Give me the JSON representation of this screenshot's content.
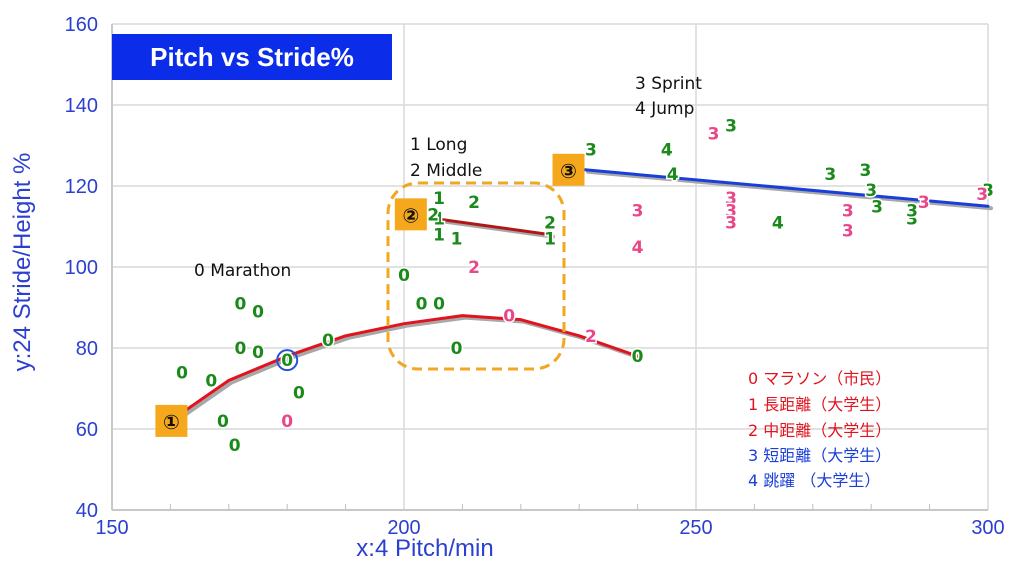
{
  "chart_data": {
    "type": "scatter",
    "title": "Pitch vs Stride%",
    "xlabel": "x:4 Pitch/min",
    "ylabel": "y:24 Stride/Height %",
    "xlim": [
      150,
      300
    ],
    "ylim": [
      40,
      160
    ],
    "xticks": [
      150,
      200,
      250,
      300
    ],
    "yticks": [
      40,
      60,
      80,
      100,
      120,
      140,
      160
    ],
    "grid": true,
    "groups": {
      "0": "#1a8a1a",
      "1": "#1a8a1a",
      "2": "#1a8a1a",
      "3": "#1a8a1a",
      "4": "#1a8a1a",
      "pink": "#e8488a"
    },
    "series": [
      {
        "label": "0",
        "color": "#1a8a1a",
        "points": [
          [
            162,
            74
          ],
          [
            167,
            72
          ],
          [
            169,
            62
          ],
          [
            171,
            56
          ],
          [
            172,
            91
          ],
          [
            175,
            89
          ],
          [
            172,
            80
          ],
          [
            175,
            79
          ],
          [
            180,
            77
          ],
          [
            182,
            69
          ],
          [
            187,
            82
          ],
          [
            200,
            98
          ],
          [
            203,
            91
          ],
          [
            206,
            91
          ],
          [
            209,
            80
          ],
          [
            240,
            78
          ]
        ]
      },
      {
        "label": "0",
        "color": "#e8488a",
        "points": [
          [
            180,
            62
          ],
          [
            218,
            88
          ]
        ]
      },
      {
        "label": "1",
        "color": "#1a8a1a",
        "points": [
          [
            206,
            117
          ],
          [
            206,
            112
          ],
          [
            206,
            108
          ],
          [
            209,
            107
          ],
          [
            225,
            107
          ]
        ]
      },
      {
        "label": "2",
        "color": "#1a8a1a",
        "points": [
          [
            205,
            113
          ],
          [
            212,
            116
          ],
          [
            225,
            111
          ]
        ]
      },
      {
        "label": "2",
        "color": "#e8488a",
        "points": [
          [
            212,
            100
          ],
          [
            232,
            83
          ]
        ]
      },
      {
        "label": "3",
        "color": "#1a8a1a",
        "points": [
          [
            232,
            129
          ],
          [
            256,
            135
          ],
          [
            273,
            123
          ],
          [
            279,
            124
          ],
          [
            280,
            119
          ],
          [
            281,
            115
          ],
          [
            287,
            112
          ],
          [
            287,
            114
          ],
          [
            300,
            119
          ]
        ]
      },
      {
        "label": "3",
        "color": "#e8488a",
        "points": [
          [
            240,
            114
          ],
          [
            253,
            133
          ],
          [
            256,
            117
          ],
          [
            256,
            114
          ],
          [
            256,
            111
          ],
          [
            276,
            114
          ],
          [
            276,
            109
          ],
          [
            289,
            116
          ],
          [
            299,
            118
          ]
        ]
      },
      {
        "label": "4",
        "color": "#1a8a1a",
        "points": [
          [
            245,
            129
          ],
          [
            246,
            123
          ],
          [
            264,
            111
          ]
        ]
      },
      {
        "label": "4",
        "color": "#e8488a",
        "points": [
          [
            240,
            105
          ]
        ]
      }
    ],
    "fit_lines": [
      {
        "group": "0",
        "color": "#e0141e",
        "points": [
          [
            160,
            62
          ],
          [
            170,
            72
          ],
          [
            180,
            78
          ],
          [
            190,
            83
          ],
          [
            200,
            86
          ],
          [
            210,
            88
          ],
          [
            220,
            87
          ],
          [
            230,
            83
          ],
          [
            240,
            78
          ]
        ]
      },
      {
        "group": "1-2",
        "color": "#b01818",
        "points": [
          [
            205,
            112
          ],
          [
            225,
            108
          ]
        ]
      },
      {
        "group": "3-4",
        "color": "#1a3fd8",
        "points": [
          [
            231,
            124
          ],
          [
            300,
            115
          ]
        ]
      }
    ],
    "annotations": [
      {
        "text": "0  Marathon"
      },
      {
        "text": "1 Long"
      },
      {
        "text": "2 Middle"
      },
      {
        "text": "3 Sprint"
      },
      {
        "text": "4 Jump"
      }
    ],
    "markers": [
      {
        "symbol": "①",
        "x": 160,
        "y": 62
      },
      {
        "symbol": "②",
        "x": 201,
        "y": 113
      },
      {
        "symbol": "③",
        "x": 228,
        "y": 124
      }
    ],
    "legend": {
      "placement": "bottom-right",
      "items": [
        {
          "text": "0  マラソン（市民）",
          "color": "#e0141e"
        },
        {
          "text": "1  長距離（大学生）",
          "color": "#e0141e"
        },
        {
          "text": "2  中距離（大学生）",
          "color": "#e0141e"
        },
        {
          "text": "3  短距離（大学生）",
          "color": "#1a3fd8"
        },
        {
          "text": "4  跳躍    （大学生）",
          "color": "#1a3fd8"
        }
      ]
    }
  }
}
